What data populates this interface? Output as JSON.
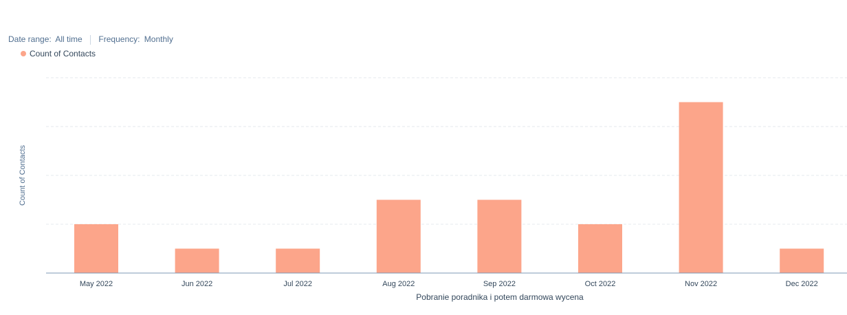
{
  "filters": {
    "date_range_label": "Date range:",
    "date_range_value": "All time",
    "frequency_label": "Frequency:",
    "frequency_value": "Monthly"
  },
  "colors": {
    "bar": "#fca58a",
    "grid": "#e5e9ee",
    "axis": "#7c98b6"
  },
  "chart_data": {
    "type": "bar",
    "categories": [
      "May 2022",
      "Jun 2022",
      "Jul 2022",
      "Aug 2022",
      "Sep 2022",
      "Oct 2022",
      "Nov 2022",
      "Dec 2022"
    ],
    "series": [
      {
        "name": "Count of Contacts",
        "values": [
          2,
          1,
          1,
          3,
          3,
          2,
          7,
          1
        ]
      }
    ],
    "xlabel": "Pobranie poradnika i potem darmowa wycena",
    "ylabel": "Count of Contacts",
    "ylim": [
      0,
      8
    ],
    "grid": true,
    "legend": "top-left"
  }
}
